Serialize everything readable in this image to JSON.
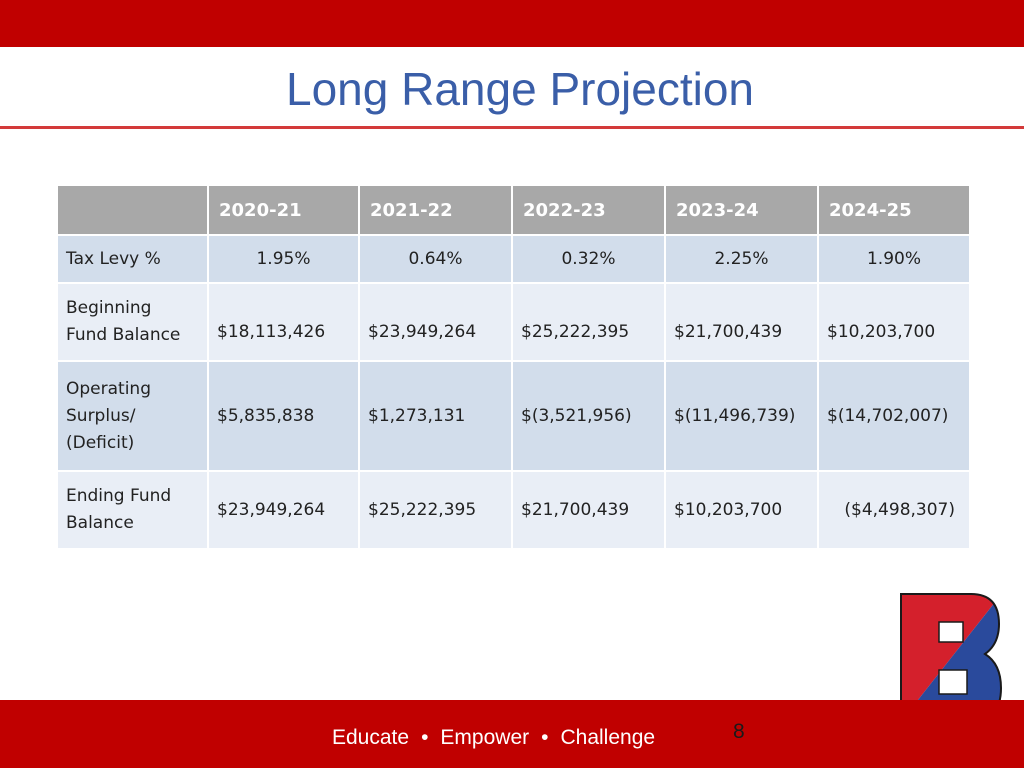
{
  "slide": {
    "title": "Long Range Projection",
    "page_number": "8",
    "footer": {
      "words": [
        "Educate",
        "Empower",
        "Challenge"
      ],
      "separator": "•"
    },
    "logo_letter": "B"
  },
  "table": {
    "columns": [
      "",
      "2020-21",
      "2021-22",
      "2022-23",
      "2023-24",
      "2024-25"
    ],
    "rows": [
      {
        "label_lines": [
          "Tax Levy %"
        ],
        "values": [
          "1.95%",
          "0.64%",
          "0.32%",
          "2.25%",
          "1.90%"
        ]
      },
      {
        "label_lines": [
          "Beginning",
          "Fund Balance"
        ],
        "values": [
          "$18,113,426",
          "$23,949,264",
          "$25,222,395",
          "$21,700,439",
          "$10,203,700"
        ]
      },
      {
        "label_lines": [
          "Operating",
          "Surplus/",
          "(Deficit)"
        ],
        "values": [
          "$5,835,838",
          "$1,273,131",
          "$(3,521,956)",
          "$(11,496,739)",
          "$(14,702,007)"
        ]
      },
      {
        "label_lines": [
          "Ending Fund",
          "Balance"
        ],
        "values": [
          "$23,949,264",
          "$25,222,395",
          "$21,700,439",
          "$10,203,700",
          "($4,498,307)"
        ]
      }
    ]
  },
  "colors": {
    "brand_red": "#c00000",
    "title_blue": "#3a5ea8",
    "negative_red": "#e02020",
    "header_gray": "#a8a8a8",
    "row_shade_dark": "#d2ddeb",
    "row_shade_light": "#e9eef6",
    "logo_blue": "#2a4a9c",
    "logo_red": "#d4202c"
  }
}
